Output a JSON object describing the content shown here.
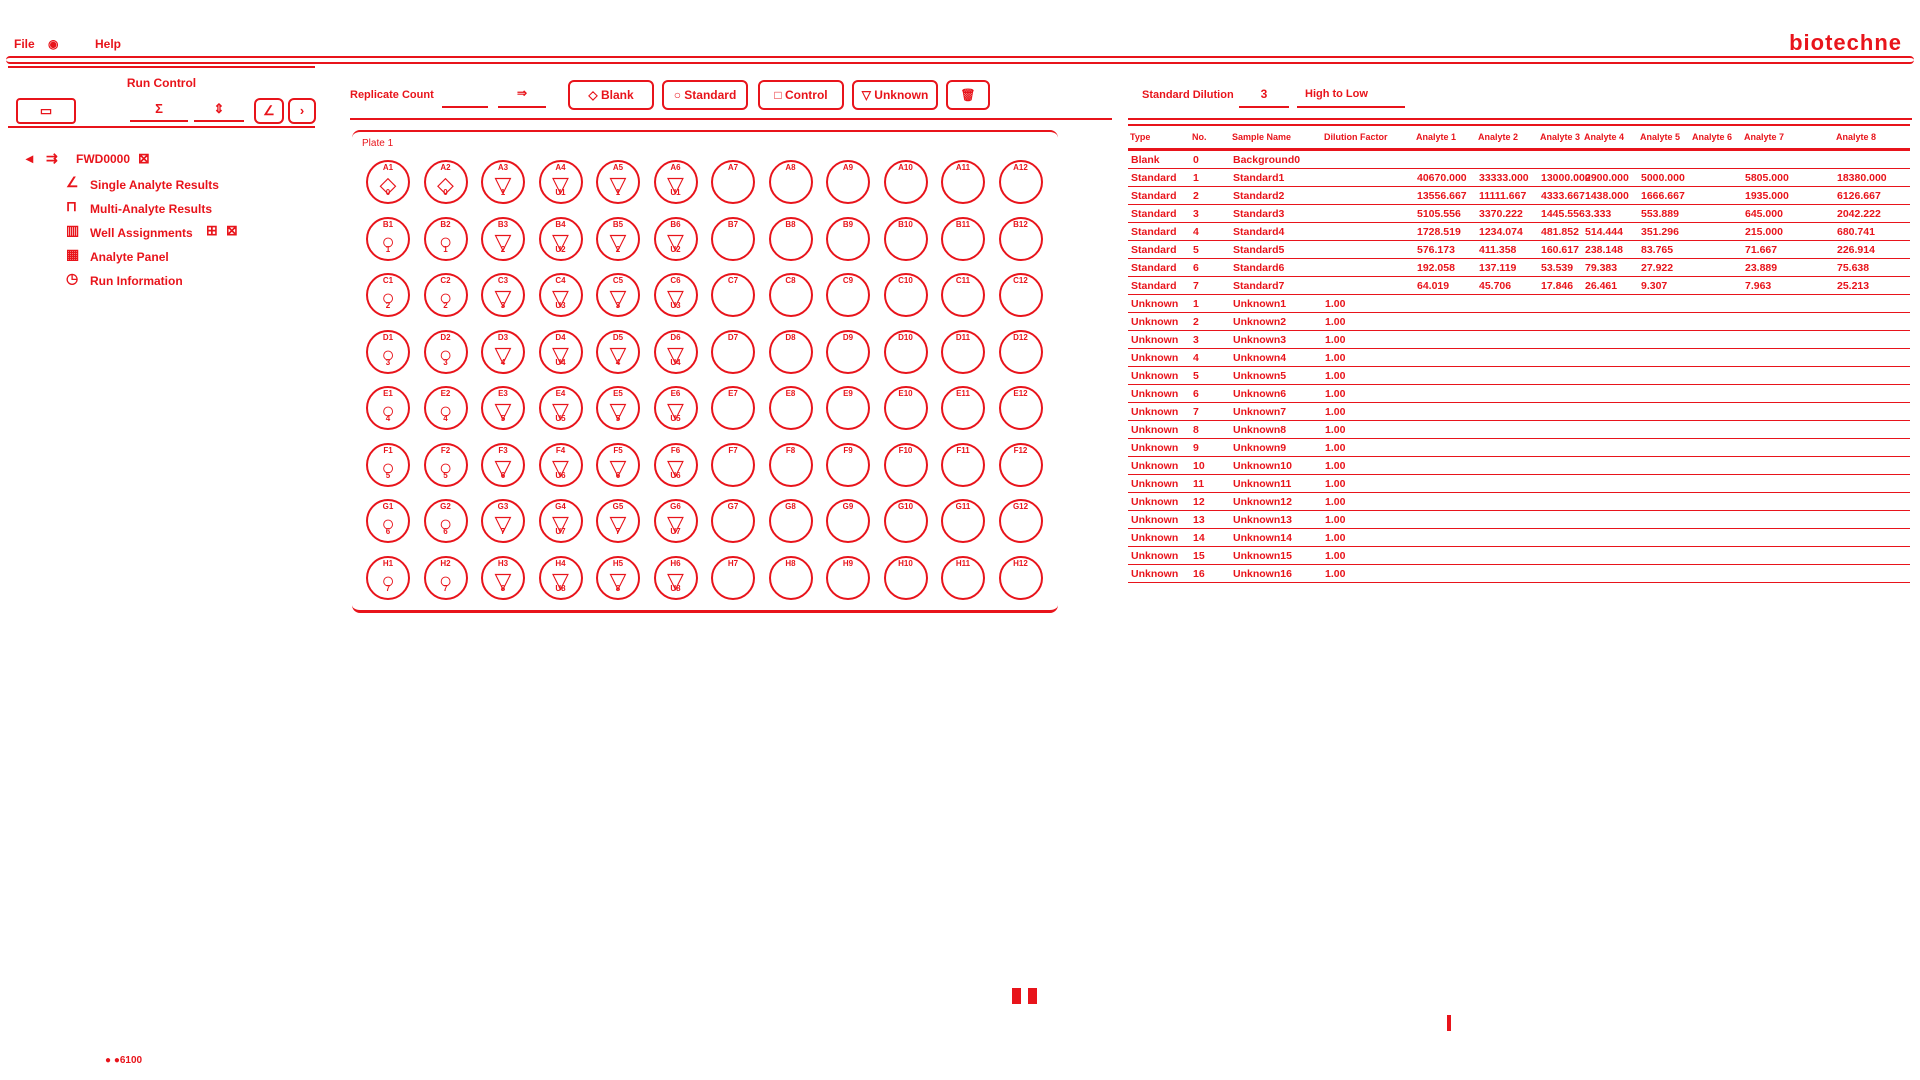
{
  "menu": {
    "file": "File",
    "help": "Help"
  },
  "brand": "biotechne",
  "left": {
    "title": "Run Control",
    "buttons": [
      "▭",
      "Σ",
      "⇕",
      "∠",
      "›"
    ],
    "tree": [
      {
        "icon": "arrow-icon",
        "glyph": "⇉",
        "label": "FWD0000",
        "indent": 0
      },
      {
        "icon": "chart-icon",
        "glyph": "∠",
        "label": "Single Analyte Results",
        "indent": 1
      },
      {
        "icon": "beaker-icon",
        "glyph": "⊓",
        "label": "Multi-Analyte Results",
        "indent": 1
      },
      {
        "icon": "assign-icon",
        "glyph": "▥",
        "label": "Well Assignments",
        "indent": 1
      },
      {
        "icon": "panel-icon",
        "glyph": "▦",
        "label": "Analyte Panel",
        "indent": 1
      },
      {
        "icon": "info-icon",
        "glyph": "◷",
        "label": "Run Information",
        "indent": 1
      }
    ]
  },
  "center": {
    "replicate_label": "Replicate Count",
    "buttons": {
      "blank": "◇ Blank",
      "standard": "○ Standard",
      "control": "□ Control",
      "unknown": "▽ Unknown",
      "delete": "🗑"
    },
    "plate_label": "Plate 1",
    "rows": [
      "A",
      "B",
      "C",
      "D",
      "E",
      "F",
      "G",
      "H"
    ],
    "cols": 12,
    "wells": {
      "A": [
        [
          "◇",
          "0"
        ],
        [
          "◇",
          "0"
        ],
        [
          "▽",
          "1"
        ],
        [
          "▽",
          "U1"
        ],
        [
          "▽",
          "1"
        ],
        [
          "▽",
          "U1"
        ]
      ],
      "B": [
        [
          "○",
          "1"
        ],
        [
          "○",
          "1"
        ],
        [
          "▽",
          "2"
        ],
        [
          "▽",
          "U2"
        ],
        [
          "▽",
          "2"
        ],
        [
          "▽",
          "U2"
        ]
      ],
      "C": [
        [
          "○",
          "2"
        ],
        [
          "○",
          "2"
        ],
        [
          "▽",
          "3"
        ],
        [
          "▽",
          "U3"
        ],
        [
          "▽",
          "3"
        ],
        [
          "▽",
          "U3"
        ]
      ],
      "D": [
        [
          "○",
          "3"
        ],
        [
          "○",
          "3"
        ],
        [
          "▽",
          "4"
        ],
        [
          "▽",
          "U4"
        ],
        [
          "▽",
          "4"
        ],
        [
          "▽",
          "U4"
        ]
      ],
      "E": [
        [
          "○",
          "4"
        ],
        [
          "○",
          "4"
        ],
        [
          "▽",
          "5"
        ],
        [
          "▽",
          "U5"
        ],
        [
          "▽",
          "5"
        ],
        [
          "▽",
          "U5"
        ]
      ],
      "F": [
        [
          "○",
          "5"
        ],
        [
          "○",
          "5"
        ],
        [
          "▽",
          "6"
        ],
        [
          "▽",
          "U6"
        ],
        [
          "▽",
          "6"
        ],
        [
          "▽",
          "U6"
        ]
      ],
      "G": [
        [
          "○",
          "6"
        ],
        [
          "○",
          "6"
        ],
        [
          "▽",
          "7"
        ],
        [
          "▽",
          "U7"
        ],
        [
          "▽",
          "7"
        ],
        [
          "▽",
          "U7"
        ]
      ],
      "H": [
        [
          "○",
          "7"
        ],
        [
          "○",
          "7"
        ],
        [
          "▽",
          "8"
        ],
        [
          "▽",
          "U8"
        ],
        [
          "▽",
          "8"
        ],
        [
          "▽",
          "U8"
        ]
      ]
    }
  },
  "right": {
    "std_dilution_label": "Standard Dilution",
    "std_dilution_value": "3",
    "sort_label": "High to Low",
    "headers": [
      "Type",
      "No.",
      "Sample Name",
      "Dilution Factor",
      "Analyte 1",
      "Analyte 2",
      "Analyte 3",
      "Analyte 4",
      "Analyte 5",
      "Analyte 6",
      "Analyte 7",
      "Analyte 8"
    ],
    "rows": [
      [
        "Blank",
        "0",
        "Background0",
        "",
        "",
        "",
        "",
        "",
        "",
        "",
        "",
        ""
      ],
      [
        "Standard",
        "1",
        "Standard1",
        "",
        "40670.000",
        "33333.000",
        "13000.000",
        "2900.000",
        "5000.000",
        "",
        "5805.000",
        "18380.000"
      ],
      [
        "Standard",
        "2",
        "Standard2",
        "",
        "13556.667",
        "11111.667",
        "4333.667",
        "1438.000",
        "1666.667",
        "",
        "1935.000",
        "6126.667"
      ],
      [
        "Standard",
        "3",
        "Standard3",
        "",
        "5105.556",
        "3370.222",
        "1445.556",
        "3.333",
        "553.889",
        "",
        "645.000",
        "2042.222"
      ],
      [
        "Standard",
        "4",
        "Standard4",
        "",
        "1728.519",
        "1234.074",
        "481.852",
        "514.444",
        "351.296",
        "",
        "215.000",
        "680.741"
      ],
      [
        "Standard",
        "5",
        "Standard5",
        "",
        "576.173",
        "411.358",
        "160.617",
        "238.148",
        "83.765",
        "",
        "71.667",
        "226.914"
      ],
      [
        "Standard",
        "6",
        "Standard6",
        "",
        "192.058",
        "137.119",
        "53.539",
        "79.383",
        "27.922",
        "",
        "23.889",
        "75.638"
      ],
      [
        "Standard",
        "7",
        "Standard7",
        "",
        "64.019",
        "45.706",
        "17.846",
        "26.461",
        "9.307",
        "",
        "7.963",
        "25.213"
      ],
      [
        "Unknown",
        "1",
        "Unknown1",
        "1.00",
        "",
        "",
        "",
        "",
        "",
        "",
        "",
        ""
      ],
      [
        "Unknown",
        "2",
        "Unknown2",
        "1.00",
        "",
        "",
        "",
        "",
        "",
        "",
        "",
        ""
      ],
      [
        "Unknown",
        "3",
        "Unknown3",
        "1.00",
        "",
        "",
        "",
        "",
        "",
        "",
        "",
        ""
      ],
      [
        "Unknown",
        "4",
        "Unknown4",
        "1.00",
        "",
        "",
        "",
        "",
        "",
        "",
        "",
        ""
      ],
      [
        "Unknown",
        "5",
        "Unknown5",
        "1.00",
        "",
        "",
        "",
        "",
        "",
        "",
        "",
        ""
      ],
      [
        "Unknown",
        "6",
        "Unknown6",
        "1.00",
        "",
        "",
        "",
        "",
        "",
        "",
        "",
        ""
      ],
      [
        "Unknown",
        "7",
        "Unknown7",
        "1.00",
        "",
        "",
        "",
        "",
        "",
        "",
        "",
        ""
      ],
      [
        "Unknown",
        "8",
        "Unknown8",
        "1.00",
        "",
        "",
        "",
        "",
        "",
        "",
        "",
        ""
      ],
      [
        "Unknown",
        "9",
        "Unknown9",
        "1.00",
        "",
        "",
        "",
        "",
        "",
        "",
        "",
        ""
      ],
      [
        "Unknown",
        "10",
        "Unknown10",
        "1.00",
        "",
        "",
        "",
        "",
        "",
        "",
        "",
        ""
      ],
      [
        "Unknown",
        "11",
        "Unknown11",
        "1.00",
        "",
        "",
        "",
        "",
        "",
        "",
        "",
        ""
      ],
      [
        "Unknown",
        "12",
        "Unknown12",
        "1.00",
        "",
        "",
        "",
        "",
        "",
        "",
        "",
        ""
      ],
      [
        "Unknown",
        "13",
        "Unknown13",
        "1.00",
        "",
        "",
        "",
        "",
        "",
        "",
        "",
        ""
      ],
      [
        "Unknown",
        "14",
        "Unknown14",
        "1.00",
        "",
        "",
        "",
        "",
        "",
        "",
        "",
        ""
      ],
      [
        "Unknown",
        "15",
        "Unknown15",
        "1.00",
        "",
        "",
        "",
        "",
        "",
        "",
        "",
        ""
      ],
      [
        "Unknown",
        "16",
        "Unknown16",
        "1.00",
        "",
        "",
        "",
        "",
        "",
        "",
        "",
        ""
      ]
    ]
  },
  "status": {
    "zoom": "● ●6100"
  },
  "colors": {
    "accent": "#e8141b",
    "background": "#ffffff"
  }
}
